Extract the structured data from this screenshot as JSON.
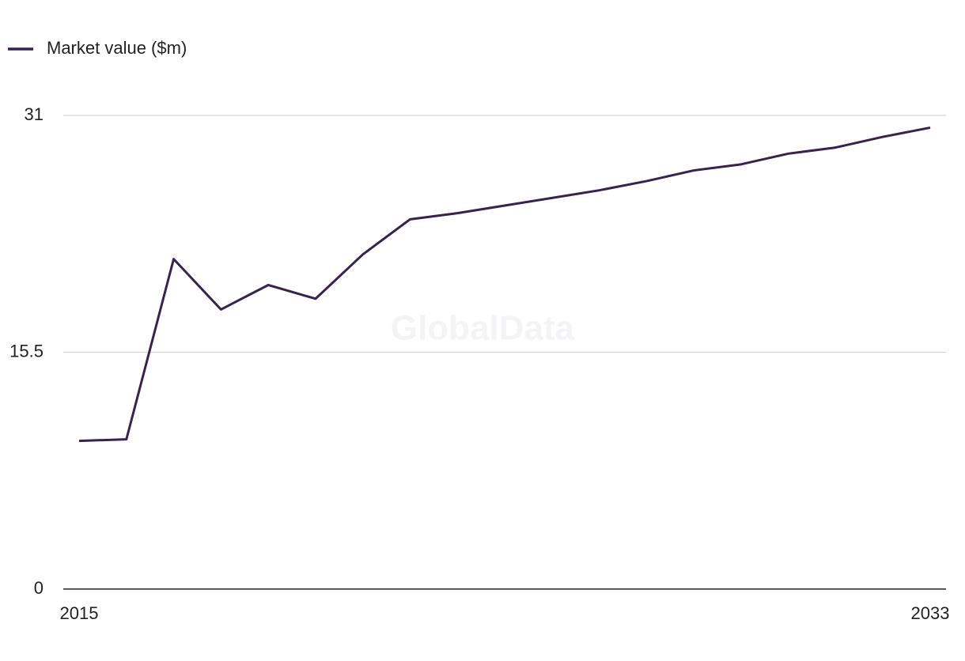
{
  "chart_data": {
    "type": "line",
    "legend": "top-left",
    "watermark": "GlobalData",
    "x": [
      2015,
      2016,
      2017,
      2018,
      2019,
      2020,
      2021,
      2022,
      2023,
      2024,
      2025,
      2026,
      2027,
      2028,
      2029,
      2030,
      2031,
      2032,
      2033
    ],
    "series": [
      {
        "name": "Market value ($m)",
        "color": "#36234f",
        "values": [
          9.7,
          9.8,
          21.6,
          18.3,
          19.9,
          19.0,
          21.9,
          24.2,
          24.6,
          25.1,
          25.6,
          26.1,
          26.7,
          27.4,
          27.8,
          28.5,
          28.9,
          29.6,
          30.2
        ]
      }
    ],
    "xlim": [
      2015,
      2033
    ],
    "xticks": [
      2015,
      2033
    ],
    "ylim": [
      0,
      31
    ],
    "yticks": [
      0,
      15.5,
      31
    ],
    "grid": true
  }
}
